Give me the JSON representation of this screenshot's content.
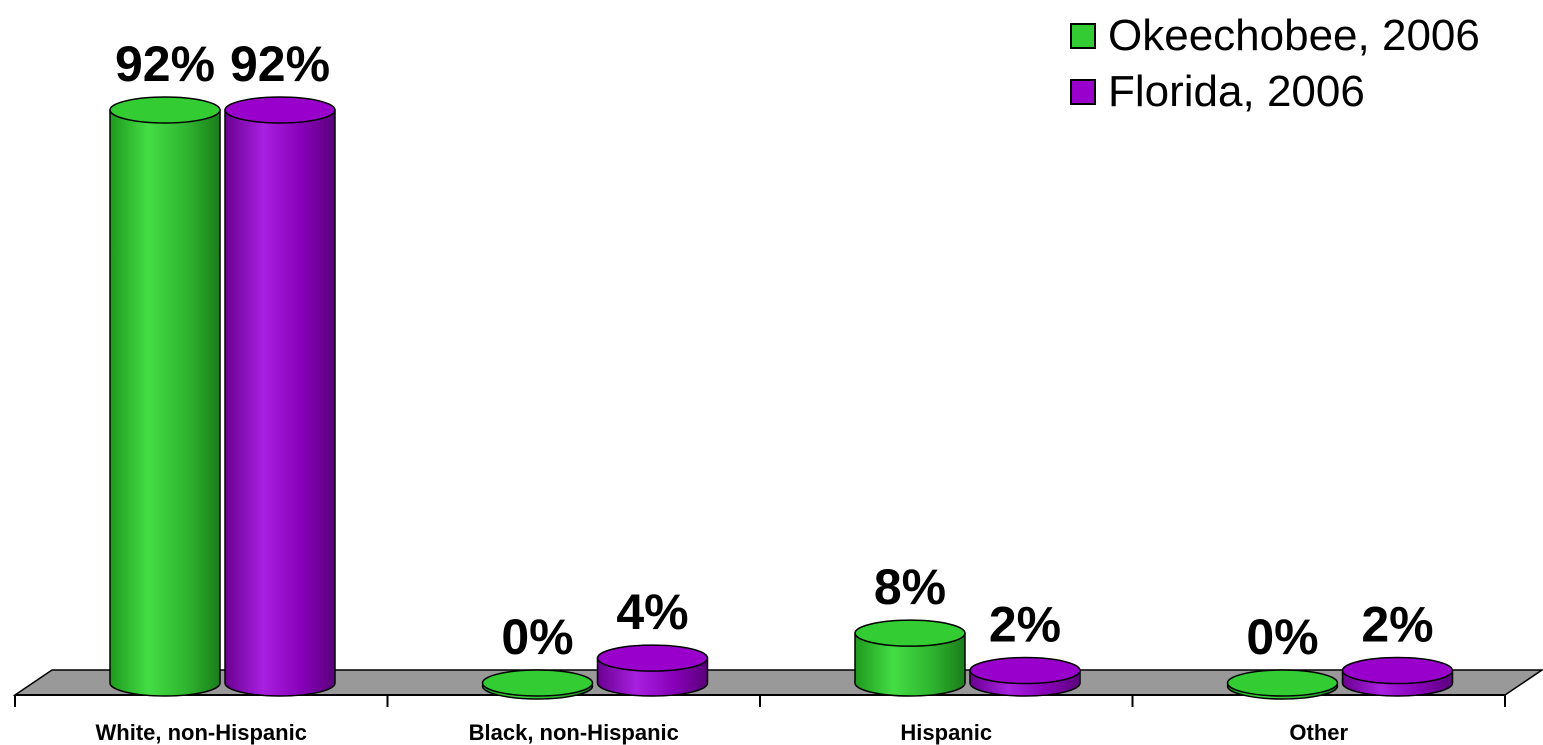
{
  "chart_data": {
    "type": "bar",
    "categories": [
      "White, non-Hispanic",
      "Black, non-Hispanic",
      "Hispanic",
      "Other"
    ],
    "series": [
      {
        "name": "Okeechobee, 2006",
        "values": [
          92,
          0,
          8,
          0
        ],
        "labels": [
          "92%",
          "0%",
          "8%",
          "0%"
        ],
        "color": "#33cc33"
      },
      {
        "name": "Florida, 2006",
        "values": [
          92,
          4,
          2,
          2
        ],
        "labels": [
          "92%",
          "4%",
          "2%",
          "2%"
        ],
        "color": "#9900cc"
      }
    ],
    "ylim": [
      0,
      92
    ],
    "legend_position": "top-right",
    "grid": false,
    "floor_color": "#999999"
  }
}
